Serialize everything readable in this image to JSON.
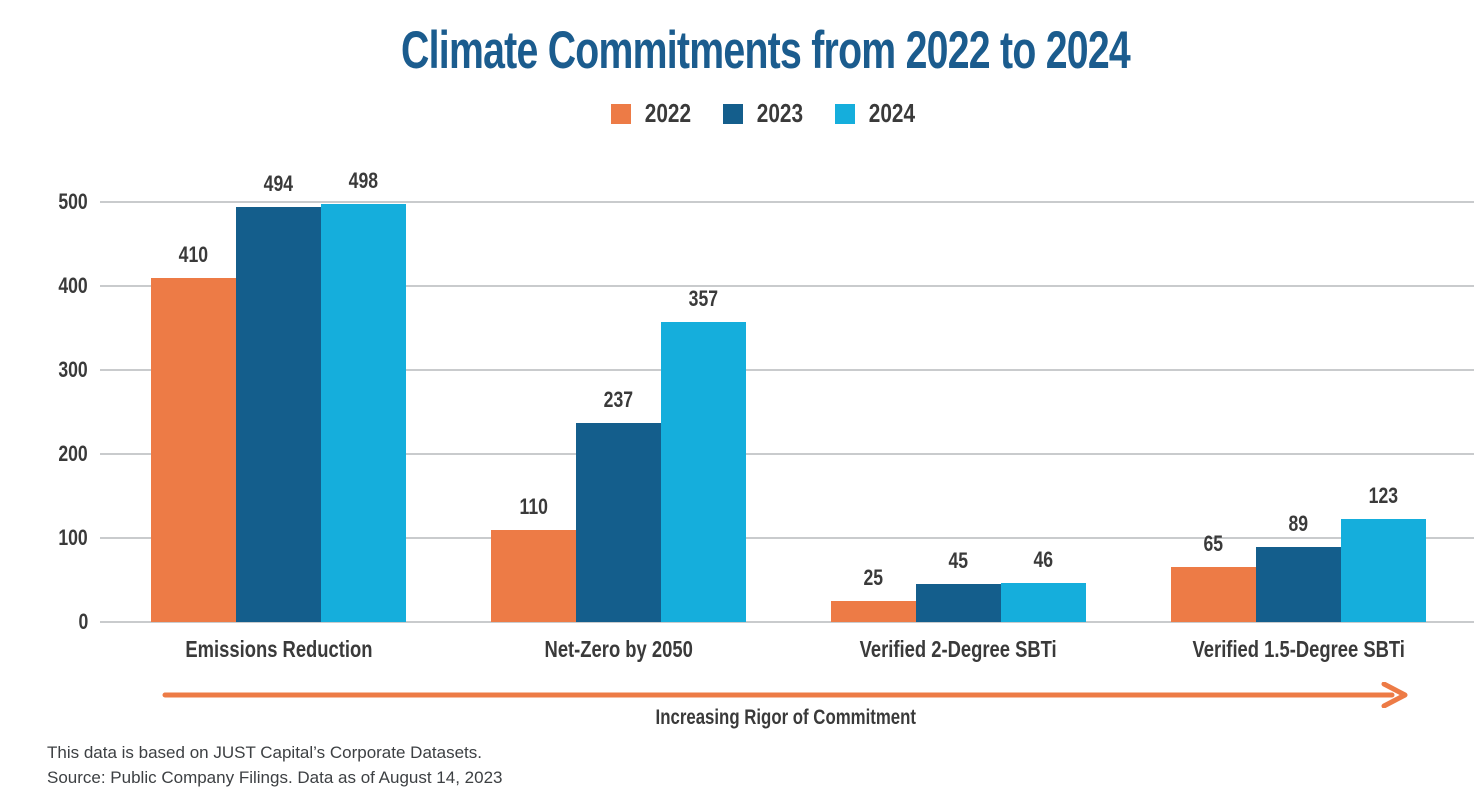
{
  "title": "Climate Commitments from 2022 to 2024",
  "colors": {
    "title": "#1b5c8e",
    "text": "#3a3a3a",
    "grid": "#c9cbcd",
    "footer_text": "#3d4043",
    "arrow": "#ed7b46",
    "series_2022": "#ed7b46",
    "series_2023": "#145e8c",
    "series_2024": "#15aedc"
  },
  "legend": {
    "items": [
      {
        "label": "2022",
        "color": "#ed7b46"
      },
      {
        "label": "2023",
        "color": "#145e8c"
      },
      {
        "label": "2024",
        "color": "#15aedc"
      }
    ]
  },
  "chart_data": {
    "type": "bar",
    "title": "Climate Commitments from 2022 to 2024",
    "categories": [
      "Emissions Reduction",
      "Net-Zero by 2050",
      "Verified 2-Degree SBTi",
      "Verified 1.5-Degree SBTi"
    ],
    "series": [
      {
        "name": "2022",
        "color": "#ed7b46",
        "values": [
          410,
          110,
          25,
          65
        ]
      },
      {
        "name": "2023",
        "color": "#145e8c",
        "values": [
          494,
          237,
          45,
          89
        ]
      },
      {
        "name": "2024",
        "color": "#15aedc",
        "values": [
          498,
          357,
          46,
          123
        ]
      }
    ],
    "xlabel": "Increasing Rigor of Commitment",
    "ylabel": "",
    "ylim": [
      0,
      500
    ],
    "yticks": [
      0,
      100,
      200,
      300,
      400,
      500
    ],
    "grid": "horizontal-only",
    "legend_position": "top-center",
    "bar_value_labels": true
  },
  "annotation": {
    "arrow_label": "Increasing Rigor of Commitment"
  },
  "footer": {
    "line1": "This data is based on JUST Capital’s Corporate Datasets.",
    "line2": "Source: Public Company Filings. Data as of August 14, 2023"
  }
}
